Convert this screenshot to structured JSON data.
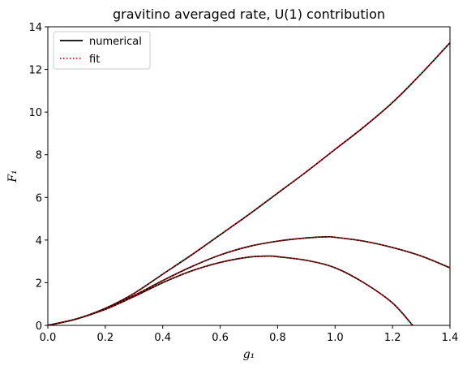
{
  "chart_data": {
    "type": "line",
    "title": "gravitino averaged rate, U(1) contribution",
    "xlabel": "g₁",
    "ylabel": "F₁",
    "xlim": [
      0,
      1.4
    ],
    "ylim": [
      0,
      14
    ],
    "x_ticks": [
      "0.0",
      "0.2",
      "0.4",
      "0.6",
      "0.8",
      "1.0",
      "1.2",
      "1.4"
    ],
    "y_ticks": [
      "0",
      "2",
      "4",
      "6",
      "8",
      "10",
      "12",
      "14"
    ],
    "legend": {
      "placement": "upper-left",
      "entries": [
        {
          "label": "numerical",
          "color": "#000000",
          "style": "solid"
        },
        {
          "label": "fit",
          "color": "#ff0000",
          "style": "dotted"
        }
      ]
    },
    "grid": false,
    "curves": [
      {
        "x": [
          0.0,
          0.1,
          0.2,
          0.3,
          0.4,
          0.5,
          0.6,
          0.7,
          0.8,
          0.9,
          1.0,
          1.1,
          1.2,
          1.3,
          1.4
        ],
        "y": [
          0.0,
          0.3,
          0.8,
          1.5,
          2.4,
          3.3,
          4.25,
          5.2,
          6.2,
          7.2,
          8.25,
          9.3,
          10.45,
          11.8,
          13.25
        ]
      },
      {
        "x": [
          0.0,
          0.1,
          0.2,
          0.3,
          0.4,
          0.5,
          0.6,
          0.7,
          0.8,
          0.9,
          0.97,
          1.0,
          1.1,
          1.2,
          1.3,
          1.4
        ],
        "y": [
          0.0,
          0.3,
          0.78,
          1.4,
          2.1,
          2.75,
          3.3,
          3.7,
          3.95,
          4.1,
          4.15,
          4.13,
          3.95,
          3.65,
          3.25,
          2.7
        ]
      },
      {
        "x": [
          0.0,
          0.1,
          0.2,
          0.3,
          0.4,
          0.5,
          0.6,
          0.7,
          0.77,
          0.8,
          0.9,
          1.0,
          1.1,
          1.2,
          1.27
        ],
        "y": [
          0.0,
          0.3,
          0.75,
          1.35,
          2.0,
          2.55,
          2.95,
          3.2,
          3.25,
          3.22,
          3.05,
          2.7,
          2.0,
          1.05,
          0.0
        ]
      }
    ]
  }
}
